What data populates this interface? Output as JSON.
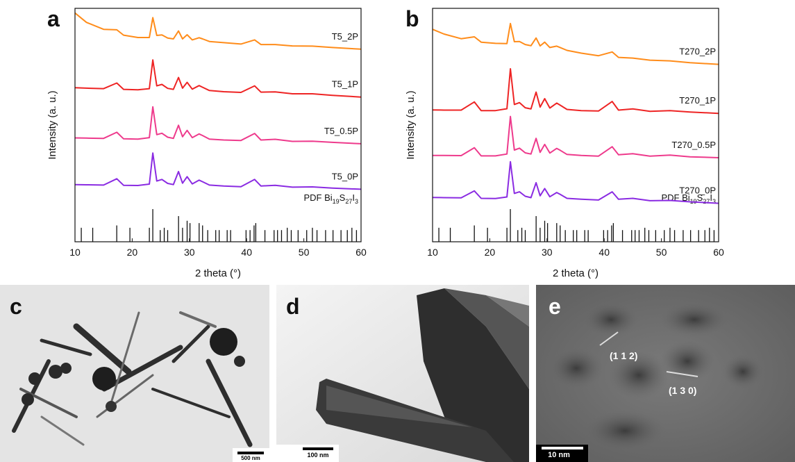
{
  "chart_data": [
    {
      "type": "line",
      "panel_label": "a",
      "x_label": "2 theta (°)",
      "y_label": "Intensity (a. u.)",
      "xlim": [
        10,
        60
      ],
      "xticks": [
        10,
        20,
        30,
        40,
        50,
        60
      ],
      "ylim": [
        0,
        100
      ],
      "x": [
        10,
        12,
        15,
        17.3,
        18.5,
        21,
        23.0,
        23.6,
        24.3,
        25.2,
        26.2,
        27.2,
        28.1,
        28.8,
        29.6,
        30.5,
        31.7,
        32.3,
        33.5,
        36,
        39,
        41.4,
        42.5,
        45,
        48,
        51.5,
        55,
        60
      ],
      "series": [
        {
          "name": "T5_2P",
          "color": "#ff8c1a",
          "values": [
            98,
            94,
            91,
            90.8,
            88.5,
            87.5,
            87.5,
            96,
            88.4,
            88.6,
            87.3,
            86.9,
            90.3,
            86.9,
            88.7,
            86.5,
            87.4,
            86.9,
            85.8,
            85.3,
            84.7,
            86.5,
            84.5,
            84.5,
            83.9,
            83.8,
            83.2,
            82.5
          ]
        },
        {
          "name": "T5_1P",
          "color": "#ee2424",
          "values": [
            66,
            65.8,
            65.6,
            68.0,
            65.3,
            65.1,
            65.6,
            77.9,
            66.8,
            67.4,
            65.7,
            65.3,
            70.4,
            65.8,
            68.3,
            65.4,
            66.9,
            66.2,
            64.8,
            64.3,
            64.0,
            66.8,
            64.1,
            64.2,
            63.4,
            63.4,
            62.7,
            62.0
          ]
        },
        {
          "name": "T5_0.5P",
          "color": "#ee3a8c",
          "values": [
            44.5,
            44.4,
            44.3,
            46.9,
            44.1,
            44.0,
            44.6,
            57.8,
            45.9,
            46.5,
            44.8,
            44.3,
            49.9,
            45.0,
            47.7,
            44.6,
            46.2,
            45.5,
            44.0,
            43.6,
            43.4,
            46.4,
            43.6,
            43.9,
            43.0,
            43.1,
            42.6,
            42.0
          ]
        },
        {
          "name": "T5_0P",
          "color": "#8a2be2",
          "values": [
            24.5,
            24.4,
            24.3,
            27.0,
            24.2,
            24.1,
            24.7,
            38.0,
            26.0,
            26.7,
            25.0,
            24.5,
            30.1,
            25.1,
            27.9,
            24.8,
            26.4,
            25.7,
            24.3,
            23.9,
            23.6,
            26.7,
            23.9,
            24.2,
            23.4,
            23.5,
            23.0,
            22.5
          ]
        }
      ],
      "reference": {
        "label": [
          "PDF Bi",
          "19",
          "S",
          "27",
          "I",
          "3"
        ],
        "color": "#111111",
        "x": [
          11.1,
          13.1,
          17.3,
          19.6,
          23.0,
          23.6,
          24.9,
          25.6,
          26.2,
          28.1,
          28.8,
          29.6,
          30.1,
          31.7,
          32.3,
          33.2,
          34.6,
          35.2,
          36.6,
          37.2,
          39.9,
          40.6,
          41.3,
          41.6,
          43.2,
          44.8,
          45.4,
          46.1,
          47.1,
          47.8,
          49.0,
          50.5,
          51.5,
          52.3,
          53.8,
          55.1,
          56.5,
          57.6,
          58.4,
          59.2
        ],
        "values": [
          6,
          6,
          7,
          6,
          6,
          14,
          5,
          6,
          5,
          11,
          6,
          9,
          8,
          8,
          7,
          5,
          5,
          5,
          5,
          5,
          5,
          5,
          7,
          8,
          5,
          5,
          5,
          5,
          6,
          5,
          5,
          5,
          6,
          5,
          5,
          5,
          5,
          5,
          6,
          5
        ]
      }
    },
    {
      "type": "line",
      "panel_label": "b",
      "x_label": "2 theta (°)",
      "y_label": "Intensity (a. u.)",
      "xlim": [
        10,
        60
      ],
      "xticks": [
        10,
        20,
        30,
        40,
        50,
        60
      ],
      "ylim": [
        0,
        100
      ],
      "x": [
        10,
        12,
        15,
        17.3,
        18.5,
        21,
        23.0,
        23.6,
        24.3,
        25.2,
        26.2,
        27.2,
        28.1,
        28.8,
        29.6,
        30.5,
        31.7,
        32.3,
        33.5,
        36,
        39,
        41.4,
        42.5,
        45,
        48,
        51.5,
        55,
        60
      ],
      "series": [
        {
          "name": "T270_2P",
          "color": "#ff8c1a",
          "values": [
            91,
            89,
            87,
            87.8,
            85.5,
            85,
            84.9,
            93.5,
            85.7,
            85.8,
            84.5,
            84.0,
            87.3,
            83.9,
            85.5,
            83.2,
            83.8,
            83.2,
            82.0,
            80.8,
            79.7,
            81.3,
            79.0,
            78.7,
            77.8,
            77.5,
            76.7,
            76.0
          ]
        },
        {
          "name": "T270_1P",
          "color": "#ee2424",
          "values": [
            56.5,
            56.4,
            56.4,
            59.9,
            56.2,
            56.2,
            57.0,
            74.1,
            58.8,
            59.6,
            57.4,
            56.9,
            64.1,
            57.7,
            61.3,
            57.3,
            59.4,
            58.5,
            56.7,
            56.2,
            56.0,
            60.1,
            56.4,
            56.9,
            55.9,
            56.2,
            55.6,
            55.0
          ]
        },
        {
          "name": "T270_0.5P",
          "color": "#ee3a8c",
          "values": [
            37.0,
            37.0,
            36.9,
            40.3,
            36.8,
            36.8,
            37.6,
            53.7,
            39.3,
            40.1,
            38.1,
            37.6,
            44.3,
            38.3,
            41.7,
            38.0,
            40.0,
            39.2,
            37.4,
            37.0,
            36.7,
            40.7,
            37.3,
            37.7,
            36.7,
            37.1,
            36.4,
            36.0
          ]
        },
        {
          "name": "T270_0P",
          "color": "#8a2be2",
          "values": [
            19.0,
            18.9,
            18.8,
            21.8,
            18.6,
            18.5,
            19.2,
            34.3,
            20.7,
            21.4,
            19.5,
            18.9,
            25.3,
            19.7,
            22.8,
            19.3,
            21.1,
            20.3,
            18.6,
            18.2,
            17.9,
            21.4,
            18.2,
            18.6,
            17.6,
            17.7,
            17.1,
            16.5
          ]
        }
      ],
      "reference": {
        "label": [
          "PDF Bi",
          "19",
          "S",
          "27",
          "I",
          "3"
        ],
        "color": "#111111",
        "x": [
          11.1,
          13.1,
          17.3,
          19.6,
          23.0,
          23.6,
          24.9,
          25.6,
          26.2,
          28.1,
          28.8,
          29.6,
          30.1,
          31.7,
          32.3,
          33.2,
          34.6,
          35.2,
          36.6,
          37.2,
          39.9,
          40.6,
          41.3,
          41.6,
          43.2,
          44.8,
          45.4,
          46.1,
          47.1,
          47.8,
          49.0,
          50.5,
          51.5,
          52.3,
          53.8,
          55.1,
          56.5,
          57.6,
          58.4,
          59.2
        ],
        "values": [
          6,
          6,
          7,
          6,
          6,
          14,
          5,
          6,
          5,
          11,
          6,
          9,
          8,
          8,
          7,
          5,
          5,
          5,
          5,
          5,
          5,
          5,
          7,
          8,
          5,
          5,
          5,
          5,
          6,
          5,
          5,
          5,
          6,
          5,
          5,
          5,
          5,
          5,
          6,
          5
        ]
      }
    }
  ],
  "images": [
    {
      "label": "c",
      "scale_bar": "500 nm"
    },
    {
      "label": "d",
      "scale_bar": "100 nm"
    },
    {
      "label": "e",
      "scale_bar": "10 nm",
      "annotations": [
        "(1 1 2)",
        "(1 3 0)"
      ]
    }
  ]
}
